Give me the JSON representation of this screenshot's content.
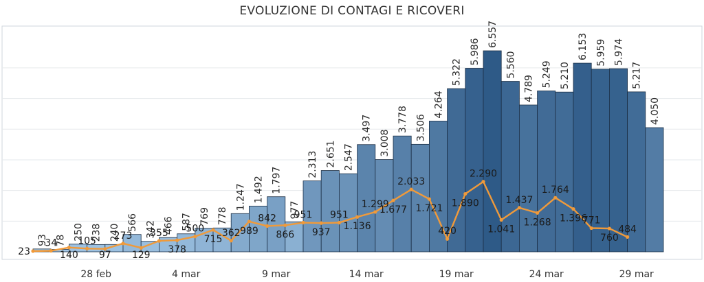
{
  "title": "EVOLUZIONE DI CONTAGI E RICOVERI",
  "colors": {
    "bar_dark": "#2e5a87",
    "bar_light": "#a7cbea",
    "bar_stroke": "#1c2f45",
    "line": "#f09a3a",
    "frame": "#cfd6dc"
  },
  "chart_data": {
    "type": "bar",
    "title": "EVOLUZIONE DI CONTAGI E RICOVERI",
    "xlabel": "",
    "ylabel": "",
    "ylim": [
      0,
      7000
    ],
    "x_ticks": [
      "28 feb",
      "4 mar",
      "9 mar",
      "14 mar",
      "19 mar",
      "24 mar",
      "29 mar"
    ],
    "x_tick_index": [
      3,
      8,
      13,
      18,
      23,
      28,
      33
    ],
    "series": [
      {
        "type": "bar",
        "values": [
          93,
          78,
          250,
          238,
          240,
          566,
          342,
          466,
          587,
          769,
          778,
          1247,
          1492,
          1797,
          977,
          2313,
          2651,
          2547,
          3497,
          3008,
          3778,
          3506,
          4264,
          5322,
          5986,
          6557,
          5560,
          4789,
          5249,
          5210,
          6153,
          5959,
          5974,
          5217,
          4050
        ],
        "labels": [
          "93",
          "78",
          "250",
          "238",
          "240",
          "566",
          "342",
          "466",
          "587",
          "769",
          "778",
          "1.247",
          "1.492",
          "1.797",
          "977",
          "2.313",
          "2.651",
          "2.547",
          "3.497",
          "3.008",
          "3.778",
          "3.506",
          "4.264",
          "5.322",
          "5.986",
          "6.557",
          "5.560",
          "4.789",
          "5.249",
          "5.210",
          "6.153",
          "5.959",
          "5.974",
          "5.217",
          "4.050"
        ]
      },
      {
        "type": "line",
        "values": [
          23,
          34,
          140,
          105,
          97,
          273,
          129,
          355,
          378,
          500,
          715,
          362,
          989,
          842,
          866,
          951,
          937,
          951,
          1136,
          1299,
          1677,
          2033,
          1721,
          420,
          1890,
          2290,
          1041,
          1437,
          1268,
          1764,
          1396,
          771,
          760,
          484
        ],
        "labels": [
          "23",
          "34",
          "140",
          "105",
          "97",
          "273",
          "129",
          "355",
          "378",
          "500",
          "715",
          "362",
          "989",
          "842",
          "866",
          "951",
          "937",
          "951",
          "1.136",
          "1.299",
          "1.677",
          "2.033",
          "1.721",
          "420",
          "1.890",
          "2.290",
          "1.041",
          "1.437",
          "1.268",
          "1.764",
          "1.396",
          "771",
          "760",
          "484"
        ]
      }
    ],
    "grid": true,
    "legend": "none"
  }
}
